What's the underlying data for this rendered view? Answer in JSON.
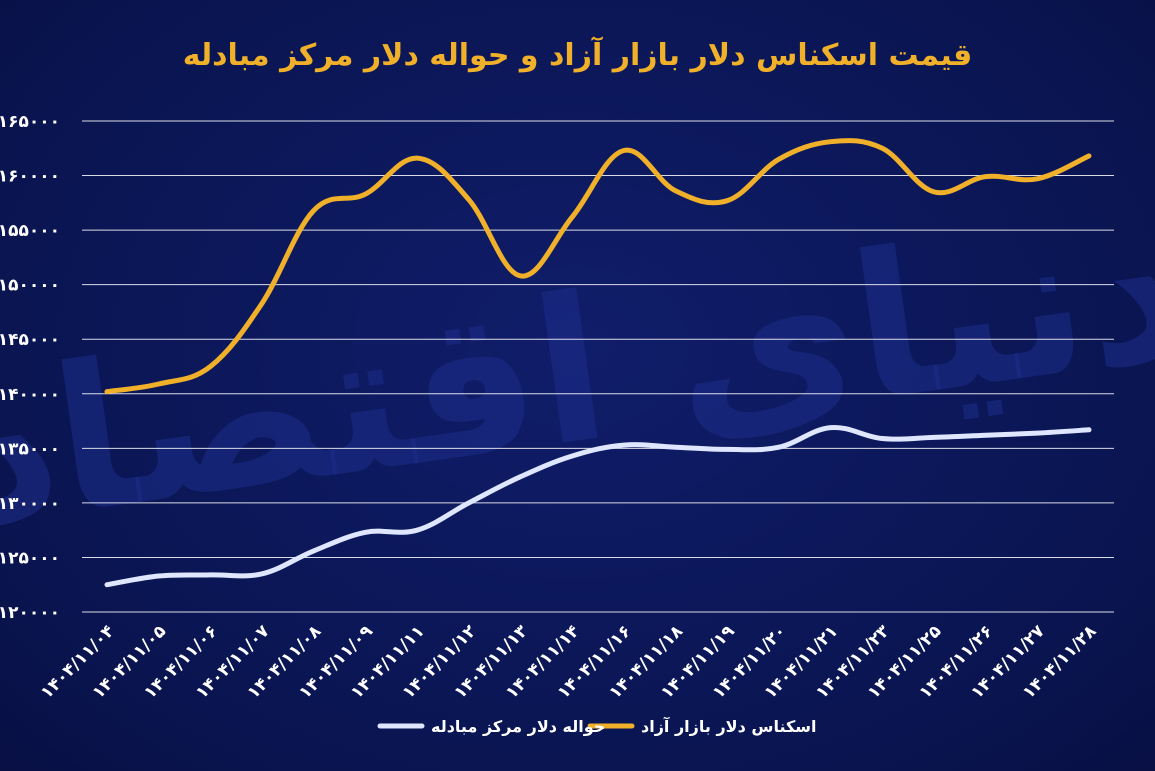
{
  "title": "قیمت اسکناس دلار بازار آزاد و حواله دلار مرکز مبادله",
  "watermark": "دنیای اقتصاد",
  "colors": {
    "background": "#0b1655",
    "free_market": "#f0b02a",
    "exchange_center": "#dfe6ff",
    "grid": "#ffffff"
  },
  "chart_data": {
    "type": "line",
    "title": "قیمت اسکناس دلار بازار آزاد و حواله دلار مرکز مبادله",
    "xlabel": "",
    "ylabel": "",
    "ylim": [
      120000,
      165000
    ],
    "yticks": [
      {
        "value": 120000,
        "label": "۱۲۰۰۰۰"
      },
      {
        "value": 125000,
        "label": "۱۲۵۰۰۰"
      },
      {
        "value": 130000,
        "label": "۱۳۰۰۰۰"
      },
      {
        "value": 135000,
        "label": "۱۳۵۰۰۰"
      },
      {
        "value": 140000,
        "label": "۱۴۰۰۰۰"
      },
      {
        "value": 145000,
        "label": "۱۴۵۰۰۰"
      },
      {
        "value": 150000,
        "label": "۱۵۰۰۰۰"
      },
      {
        "value": 155000,
        "label": "۱۵۵۰۰۰"
      },
      {
        "value": 160000,
        "label": "۱۶۰۰۰۰"
      },
      {
        "value": 165000,
        "label": "۱۶۵۰۰۰"
      }
    ],
    "categories": [
      "۱۴۰۴/۱۱/۰۴",
      "۱۴۰۴/۱۱/۰۵",
      "۱۴۰۴/۱۱/۰۶",
      "۱۴۰۴/۱۱/۰۷",
      "۱۴۰۴/۱۱/۰۸",
      "۱۴۰۴/۱۱/۰۹",
      "۱۴۰۴/۱۱/۱۱",
      "۱۴۰۴/۱۱/۱۲",
      "۱۴۰۴/۱۱/۱۳",
      "۱۴۰۴/۱۱/۱۴",
      "۱۴۰۴/۱۱/۱۶",
      "۱۴۰۴/۱۱/۱۸",
      "۱۴۰۴/۱۱/۱۹",
      "۱۴۰۴/۱۱/۲۰",
      "۱۴۰۴/۱۱/۲۱",
      "۱۴۰۴/۱۱/۲۳",
      "۱۴۰۴/۱۱/۲۵",
      "۱۴۰۴/۱۱/۲۶",
      "۱۴۰۴/۱۱/۲۷",
      "۱۴۰۴/۱۱/۲۸"
    ],
    "series": [
      {
        "name": "اسکناس دلار بازار آزاد",
        "color": "#f0b02a",
        "values": [
          140200,
          140900,
          142500,
          148300,
          156800,
          158300,
          161600,
          157800,
          150800,
          156200,
          162300,
          158600,
          157700,
          161500,
          163100,
          162500,
          158500,
          159900,
          159700,
          161800
        ]
      },
      {
        "name": "حواله دلار مرکز مبادله",
        "color": "#dfe6ff",
        "values": [
          122500,
          123300,
          123400,
          123500,
          125600,
          127300,
          127500,
          130000,
          132400,
          134300,
          135300,
          135100,
          134900,
          135100,
          136900,
          135900,
          136000,
          136200,
          136400,
          136700
        ]
      }
    ],
    "grid": true,
    "legend": "bottom-center"
  }
}
